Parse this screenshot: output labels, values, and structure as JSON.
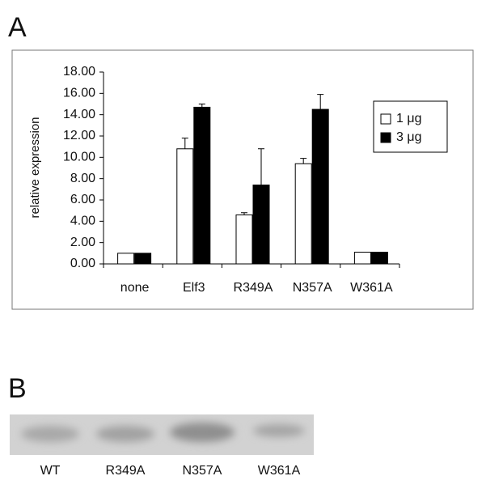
{
  "panels": [
    "A",
    "B"
  ],
  "chart_data": {
    "type": "bar",
    "y_label": "relative expression",
    "categories": [
      "none",
      "Elf3",
      "R349A",
      "N357A",
      "W361A"
    ],
    "series": [
      {
        "name": "1 μg",
        "color": "#ffffff",
        "values": [
          1.0,
          10.8,
          4.6,
          9.4,
          1.1
        ],
        "errors": [
          0,
          1.0,
          0.2,
          0.5,
          0
        ]
      },
      {
        "name": "3 μg",
        "color": "#000000",
        "values": [
          1.0,
          14.7,
          7.4,
          14.5,
          1.1
        ],
        "errors": [
          0,
          0.3,
          3.4,
          1.4,
          0
        ]
      }
    ],
    "ylim": [
      0,
      18
    ],
    "yticks": [
      {
        "value": 0,
        "label": "0.00"
      },
      {
        "value": 2,
        "label": "2.00"
      },
      {
        "value": 4,
        "label": "4.00"
      },
      {
        "value": 6,
        "label": "6.00"
      },
      {
        "value": 8,
        "label": "8.00"
      },
      {
        "value": 10,
        "label": "10.00"
      },
      {
        "value": 12,
        "label": "12.00"
      },
      {
        "value": 14,
        "label": "14.00"
      },
      {
        "value": 16,
        "label": "16.00"
      },
      {
        "value": 18,
        "label": "18.00"
      }
    ],
    "grid": false,
    "legend": "upper right"
  },
  "blot": {
    "lanes": [
      "WT",
      "R349A",
      "N357A",
      "W361A"
    ]
  }
}
